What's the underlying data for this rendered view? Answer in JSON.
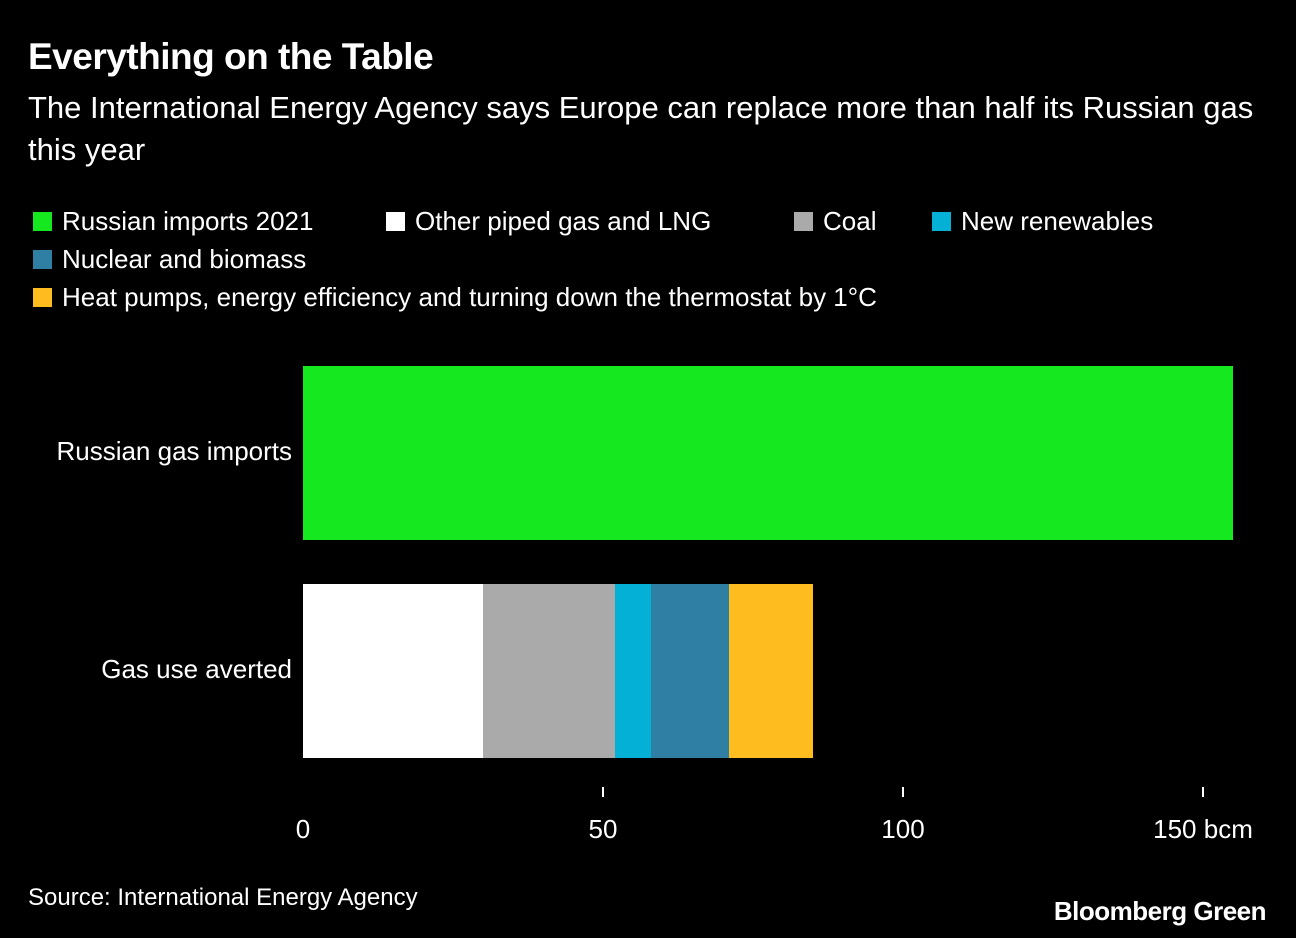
{
  "chart_data": {
    "type": "stacked-bar-horizontal",
    "title": "Everything on the Table",
    "subtitle": "The International Energy Agency says Europe can replace more than half its Russian gas this year",
    "categories": [
      "Russian gas imports",
      "Gas use averted"
    ],
    "series": [
      {
        "name": "Russian imports 2021",
        "color": "#16e81f",
        "values": [
          155,
          null
        ]
      },
      {
        "name": "Other piped gas and LNG",
        "color": "#ffffff",
        "values": [
          null,
          30
        ]
      },
      {
        "name": "Coal",
        "color": "#aaaaaa",
        "values": [
          null,
          22
        ]
      },
      {
        "name": "New renewables",
        "color": "#05b0d6",
        "values": [
          null,
          6
        ]
      },
      {
        "name": "Nuclear and biomass",
        "color": "#2e7fa3",
        "values": [
          null,
          13
        ]
      },
      {
        "name": "Heat pumps, energy efficiency and turning down the thermostat by 1°C",
        "color": "#ffbc1f",
        "values": [
          null,
          14
        ]
      }
    ],
    "xlim": [
      0,
      155
    ],
    "xticks": [
      0,
      50,
      100,
      {
        "value": 150,
        "label": "150 bcm"
      }
    ],
    "source": "Source: International Energy Agency",
    "branding": "Bloomberg Green"
  }
}
